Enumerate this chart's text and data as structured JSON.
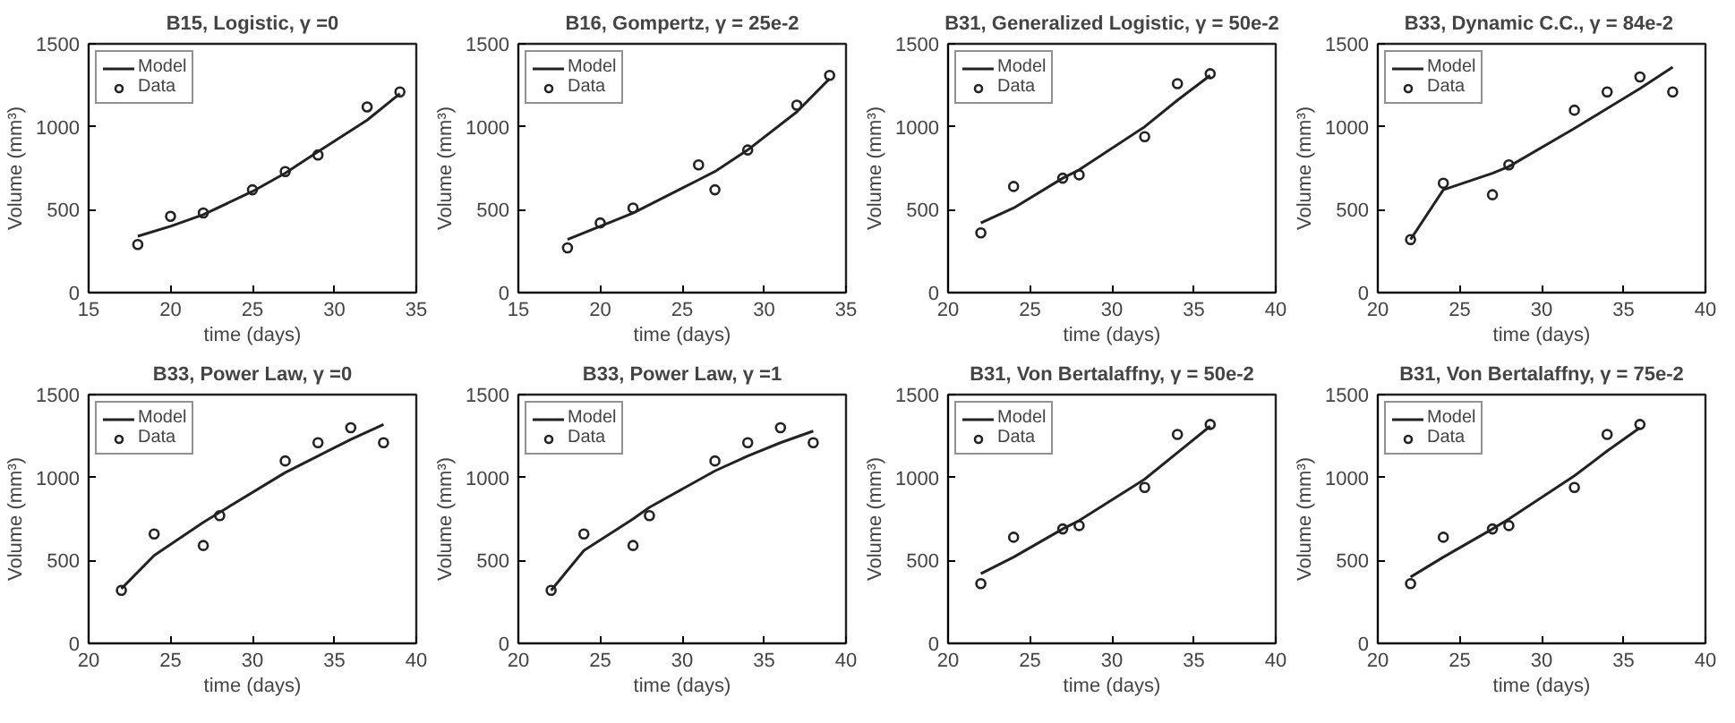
{
  "chart_data": [
    {
      "type": "line",
      "title": "B15, Logistic, γ =0",
      "xlabel": "time (days)",
      "ylabel": "Volume (mm³)",
      "xlim": [
        15,
        35
      ],
      "xticks": [
        15,
        20,
        25,
        30,
        35
      ],
      "ylim": [
        0,
        1500
      ],
      "yticks": [
        0,
        500,
        1000,
        1500
      ],
      "legend": "top left",
      "grid": false,
      "series": [
        {
          "name": "Model",
          "color": "#222222",
          "marker": "none",
          "x": [
            18,
            20,
            22,
            25,
            27,
            29,
            32,
            34
          ],
          "values": [
            340,
            400,
            470,
            610,
            720,
            850,
            1040,
            1200
          ]
        },
        {
          "name": "Data",
          "type": "scatter",
          "color": "#222222",
          "marker": "circle",
          "x": [
            18,
            20,
            22,
            25,
            27,
            29,
            32,
            34
          ],
          "values": [
            290,
            460,
            480,
            620,
            730,
            830,
            1120,
            1210
          ]
        }
      ]
    },
    {
      "type": "line",
      "title": "B16, Gompertz, γ = 25e-2",
      "xlabel": "time (days)",
      "ylabel": "Volume (mm³)",
      "xlim": [
        15,
        35
      ],
      "xticks": [
        15,
        20,
        25,
        30,
        35
      ],
      "ylim": [
        0,
        1500
      ],
      "yticks": [
        0,
        500,
        1000,
        1500
      ],
      "legend": "top left",
      "grid": false,
      "series": [
        {
          "name": "Model",
          "color": "#222222",
          "marker": "none",
          "x": [
            18,
            20,
            22,
            26,
            27,
            29,
            32,
            34
          ],
          "values": [
            320,
            400,
            480,
            680,
            730,
            860,
            1090,
            1290
          ]
        },
        {
          "name": "Data",
          "type": "scatter",
          "color": "#222222",
          "marker": "circle",
          "x": [
            18,
            20,
            22,
            26,
            27,
            29,
            32,
            34
          ],
          "values": [
            270,
            420,
            510,
            770,
            620,
            860,
            1130,
            1310
          ]
        }
      ]
    },
    {
      "type": "line",
      "title": "B31, Generalized Logistic, γ = 50e-2",
      "xlabel": "time (days)",
      "ylabel": "Volume (mm³)",
      "xlim": [
        20,
        40
      ],
      "xticks": [
        20,
        25,
        30,
        35,
        40
      ],
      "ylim": [
        0,
        1500
      ],
      "yticks": [
        0,
        500,
        1000,
        1500
      ],
      "legend": "top left",
      "grid": false,
      "series": [
        {
          "name": "Model",
          "color": "#222222",
          "marker": "none",
          "x": [
            22,
            24,
            27,
            28,
            32,
            34,
            36
          ],
          "values": [
            420,
            510,
            690,
            740,
            1000,
            1160,
            1310
          ]
        },
        {
          "name": "Data",
          "type": "scatter",
          "color": "#222222",
          "marker": "circle",
          "x": [
            22,
            24,
            27,
            28,
            32,
            34,
            36
          ],
          "values": [
            360,
            640,
            690,
            710,
            940,
            1260,
            1320
          ]
        }
      ]
    },
    {
      "type": "line",
      "title": "B33, Dynamic C.C.,  γ = 84e-2",
      "xlabel": "time (days)",
      "ylabel": "Volume (mm³)",
      "xlim": [
        20,
        40
      ],
      "xticks": [
        20,
        25,
        30,
        35,
        40
      ],
      "ylim": [
        0,
        1500
      ],
      "yticks": [
        0,
        500,
        1000,
        1500
      ],
      "legend": "top left",
      "grid": false,
      "series": [
        {
          "name": "Model",
          "color": "#222222",
          "marker": "none",
          "x": [
            22,
            24,
            27,
            28,
            32,
            34,
            36,
            38
          ],
          "values": [
            320,
            620,
            720,
            760,
            990,
            1110,
            1230,
            1360
          ]
        },
        {
          "name": "Data",
          "type": "scatter",
          "color": "#222222",
          "marker": "circle",
          "x": [
            22,
            24,
            27,
            28,
            32,
            34,
            36,
            38
          ],
          "values": [
            320,
            660,
            590,
            770,
            1100,
            1210,
            1300,
            1210
          ]
        }
      ]
    },
    {
      "type": "line",
      "title": "B33, Power Law, γ =0",
      "xlabel": "time (days)",
      "ylabel": "Volume (mm³)",
      "xlim": [
        20,
        40
      ],
      "xticks": [
        20,
        25,
        30,
        35,
        40
      ],
      "ylim": [
        0,
        1500
      ],
      "yticks": [
        0,
        500,
        1000,
        1500
      ],
      "legend": "top left",
      "grid": false,
      "series": [
        {
          "name": "Model",
          "color": "#222222",
          "marker": "none",
          "x": [
            22,
            24,
            27,
            28,
            32,
            34,
            36,
            38
          ],
          "values": [
            330,
            530,
            730,
            790,
            1030,
            1130,
            1230,
            1320
          ]
        },
        {
          "name": "Data",
          "type": "scatter",
          "color": "#222222",
          "marker": "circle",
          "x": [
            22,
            24,
            27,
            28,
            32,
            34,
            36,
            38
          ],
          "values": [
            320,
            660,
            590,
            770,
            1100,
            1210,
            1300,
            1210
          ]
        }
      ]
    },
    {
      "type": "line",
      "title": "B33, Power Law, γ =1",
      "xlabel": "time (days)",
      "ylabel": "Volume (mm³)",
      "xlim": [
        20,
        40
      ],
      "xticks": [
        20,
        25,
        30,
        35,
        40
      ],
      "ylim": [
        0,
        1500
      ],
      "yticks": [
        0,
        500,
        1000,
        1500
      ],
      "legend": "top left",
      "grid": false,
      "series": [
        {
          "name": "Model",
          "color": "#222222",
          "marker": "none",
          "x": [
            22,
            24,
            27,
            28,
            32,
            34,
            36,
            38
          ],
          "values": [
            320,
            560,
            750,
            820,
            1040,
            1130,
            1210,
            1280
          ]
        },
        {
          "name": "Data",
          "type": "scatter",
          "color": "#222222",
          "marker": "circle",
          "x": [
            22,
            24,
            27,
            28,
            32,
            34,
            36,
            38
          ],
          "values": [
            320,
            660,
            590,
            770,
            1100,
            1210,
            1300,
            1210
          ]
        }
      ]
    },
    {
      "type": "line",
      "title": "B31, Von Bertalaffny, γ = 50e-2",
      "xlabel": "time (days)",
      "ylabel": "Volume (mm³)",
      "xlim": [
        20,
        40
      ],
      "xticks": [
        20,
        25,
        30,
        35,
        40
      ],
      "ylim": [
        0,
        1500
      ],
      "yticks": [
        0,
        500,
        1000,
        1500
      ],
      "legend": "top left",
      "grid": false,
      "series": [
        {
          "name": "Model",
          "color": "#222222",
          "marker": "none",
          "x": [
            22,
            24,
            27,
            28,
            32,
            34,
            36
          ],
          "values": [
            420,
            520,
            690,
            740,
            990,
            1150,
            1310
          ]
        },
        {
          "name": "Data",
          "type": "scatter",
          "color": "#222222",
          "marker": "circle",
          "x": [
            22,
            24,
            27,
            28,
            32,
            34,
            36
          ],
          "values": [
            360,
            640,
            690,
            710,
            940,
            1260,
            1320
          ]
        }
      ]
    },
    {
      "type": "line",
      "title": "B31, Von Bertalaffny, γ = 75e-2",
      "xlabel": "time (days)",
      "ylabel": "Volume (mm³)",
      "xlim": [
        20,
        40
      ],
      "xticks": [
        20,
        25,
        30,
        35,
        40
      ],
      "ylim": [
        0,
        1500
      ],
      "yticks": [
        0,
        500,
        1000,
        1500
      ],
      "legend": "top left",
      "grid": false,
      "series": [
        {
          "name": "Model",
          "color": "#222222",
          "marker": "none",
          "x": [
            22,
            24,
            27,
            28,
            32,
            34,
            36
          ],
          "values": [
            400,
            520,
            690,
            750,
            1010,
            1160,
            1300
          ]
        },
        {
          "name": "Data",
          "type": "scatter",
          "color": "#222222",
          "marker": "circle",
          "x": [
            22,
            24,
            27,
            28,
            32,
            34,
            36
          ],
          "values": [
            360,
            640,
            690,
            710,
            940,
            1260,
            1320
          ]
        }
      ]
    }
  ]
}
